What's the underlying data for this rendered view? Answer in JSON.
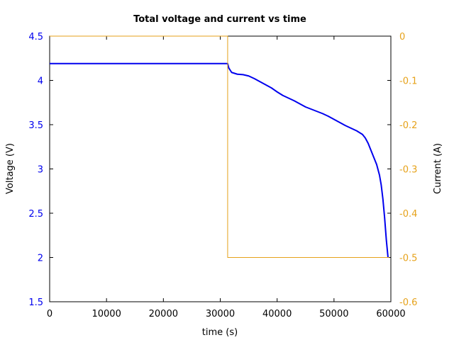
{
  "chart_data": {
    "type": "line",
    "title": "Total voltage and current vs time",
    "xlabel": "time (s)",
    "ylabel_left": "Voltage (V)",
    "ylabel_right": "Current (A)",
    "xlim": [
      0,
      60000
    ],
    "ylim_left": [
      1.5,
      4.5
    ],
    "ylim_right": [
      -0.6,
      0
    ],
    "xticks": [
      "0",
      "10000",
      "20000",
      "30000",
      "40000",
      "50000",
      "60000"
    ],
    "yticks_left": [
      "1.5",
      "2",
      "2.5",
      "3",
      "3.5",
      "4",
      "4.5"
    ],
    "yticks_right": [
      "-0.6",
      "-0.5",
      "-0.4",
      "-0.3",
      "-0.2",
      "-0.1",
      "0"
    ],
    "grid": false,
    "colors": {
      "voltage": "#0000ee",
      "current": "#e6a21a",
      "axis_left": "#0000ee",
      "axis_right": "#e6a21a"
    },
    "series": [
      {
        "axis": "left",
        "x": [
          0,
          30000,
          31300,
          31500,
          32000,
          33000,
          34000,
          35000,
          36000,
          37000,
          38000,
          39000,
          40000,
          41000,
          42000,
          43000,
          44000,
          45000,
          46000,
          47000,
          48000,
          49000,
          50000,
          51000,
          52000,
          53000,
          54000,
          55000,
          55500,
          56000,
          56500,
          57000,
          57500,
          58000,
          58300,
          58600,
          58900,
          59200,
          59500
        ],
        "y": [
          4.19,
          4.19,
          4.19,
          4.14,
          4.09,
          4.07,
          4.065,
          4.05,
          4.02,
          3.985,
          3.95,
          3.915,
          3.87,
          3.83,
          3.8,
          3.77,
          3.735,
          3.7,
          3.675,
          3.65,
          3.625,
          3.595,
          3.56,
          3.525,
          3.49,
          3.46,
          3.43,
          3.39,
          3.35,
          3.29,
          3.21,
          3.13,
          3.05,
          2.93,
          2.82,
          2.66,
          2.45,
          2.2,
          2.0
        ]
      },
      {
        "axis": "right",
        "x": [
          0,
          31300,
          31300,
          59700
        ],
        "y": [
          0,
          0,
          -0.5,
          -0.5
        ]
      }
    ]
  }
}
